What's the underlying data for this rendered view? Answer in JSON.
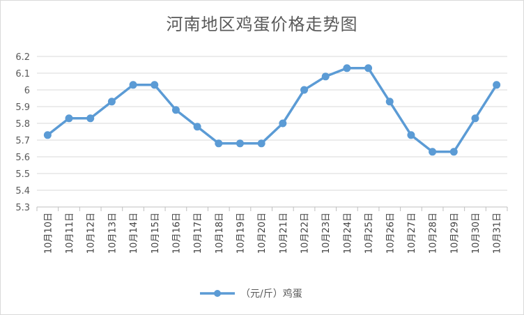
{
  "chart_data": {
    "type": "line",
    "title": "河南地区鸡蛋价格走势图",
    "xlabel": "",
    "ylabel": "",
    "categories": [
      "10月10日",
      "10月11日",
      "10月12日",
      "10月13日",
      "10月14日",
      "10月15日",
      "10月16日",
      "10月17日",
      "10月18日",
      "10月19日",
      "10月20日",
      "10月21日",
      "10月22日",
      "10月23日",
      "10月24日",
      "10月25日",
      "10月26日",
      "10月27日",
      "10月28日",
      "10月29日",
      "10月30日",
      "10月31日"
    ],
    "series": [
      {
        "name": "（元/斤）鸡蛋",
        "color": "#5b9bd5",
        "values": [
          5.73,
          5.83,
          5.83,
          5.93,
          6.03,
          6.03,
          5.88,
          5.78,
          5.68,
          5.68,
          5.68,
          5.8,
          6.0,
          6.08,
          6.13,
          6.13,
          5.93,
          5.73,
          5.63,
          5.63,
          5.83,
          6.03
        ]
      }
    ],
    "ylim": [
      5.3,
      6.2
    ],
    "yticks": [
      "5.3",
      "5.4",
      "5.5",
      "5.6",
      "5.7",
      "5.8",
      "5.9",
      "6",
      "6.1",
      "6.2"
    ],
    "grid": true,
    "legend": "bottom"
  }
}
